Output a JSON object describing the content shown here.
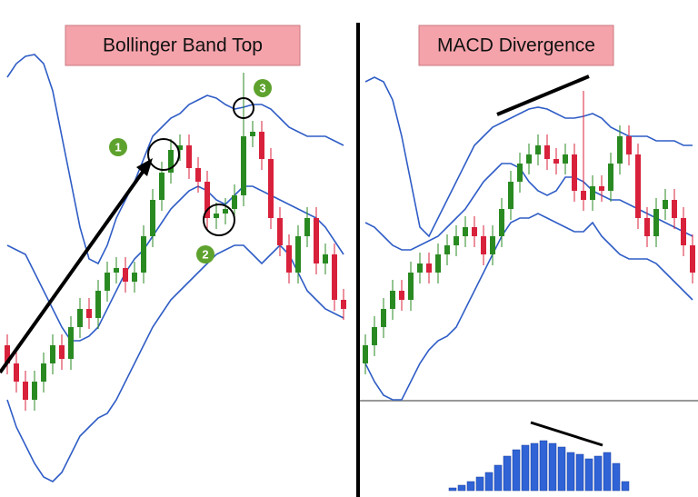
{
  "chart_data": [
    {
      "type": "candlestick",
      "title": "Bollinger Band Top",
      "annotations": [
        "1",
        "2",
        "3"
      ],
      "ylim": [
        0,
        547
      ],
      "up_color": "#2a8a22",
      "down_color": "#d8213b",
      "band_color": "#2f5dc6",
      "open": [
        167,
        147,
        127,
        107,
        127,
        147,
        167,
        152,
        187,
        207,
        197,
        227,
        247,
        252,
        237,
        247,
        287,
        327,
        357,
        382,
        387,
        362,
        347,
        307,
        312,
        317,
        332,
        397,
        402,
        372,
        307,
        277,
        247,
        287,
        307,
        257,
        267,
        217
      ],
      "high": [
        179,
        159,
        139,
        139,
        159,
        179,
        179,
        199,
        219,
        219,
        239,
        259,
        264,
        264,
        259,
        299,
        339,
        369,
        394,
        399,
        399,
        374,
        359,
        324,
        329,
        344,
        467,
        414,
        414,
        384,
        319,
        289,
        299,
        319,
        319,
        279,
        279,
        229
      ],
      "low": [
        135,
        115,
        95,
        95,
        115,
        135,
        140,
        140,
        175,
        185,
        185,
        215,
        235,
        225,
        225,
        235,
        275,
        315,
        345,
        370,
        350,
        335,
        295,
        295,
        300,
        305,
        320,
        385,
        360,
        295,
        265,
        235,
        235,
        275,
        245,
        245,
        205,
        195
      ],
      "close": [
        147,
        127,
        107,
        127,
        147,
        167,
        152,
        187,
        207,
        197,
        227,
        247,
        252,
        237,
        247,
        287,
        327,
        357,
        382,
        387,
        362,
        347,
        307,
        312,
        317,
        332,
        397,
        402,
        372,
        307,
        277,
        247,
        287,
        307,
        257,
        267,
        217,
        207
      ],
      "upper": [
        462,
        477,
        485,
        487,
        477,
        447,
        397,
        347,
        297,
        262,
        257,
        277,
        307,
        327,
        347,
        372,
        397,
        407,
        417,
        422,
        432,
        437,
        442,
        439,
        432,
        427,
        429,
        432,
        432,
        427,
        417,
        407,
        402,
        397,
        397,
        397,
        392,
        387
      ],
      "middle": [
        277,
        272,
        267,
        247,
        227,
        207,
        187,
        172,
        172,
        177,
        187,
        207,
        227,
        247,
        262,
        272,
        287,
        302,
        317,
        327,
        337,
        342,
        337,
        327,
        322,
        332,
        342,
        342,
        337,
        332,
        327,
        322,
        317,
        312,
        307,
        297,
        282,
        267
      ],
      "lower": [
        107,
        77,
        57,
        37,
        22,
        17,
        27,
        47,
        67,
        77,
        87,
        92,
        107,
        127,
        147,
        167,
        187,
        202,
        217,
        227,
        237,
        247,
        257,
        267,
        272,
        277,
        277,
        267,
        257,
        267,
        277,
        267,
        247,
        227,
        217,
        207,
        202,
        197
      ]
    },
    {
      "type": "candlestick",
      "title": "MACD Divergence",
      "ylim": [
        0,
        547
      ],
      "up_color": "#2a8a22",
      "down_color": "#d8213b",
      "band_color": "#2f5dc6",
      "open": [
        147,
        167,
        187,
        207,
        227,
        217,
        247,
        257,
        247,
        267,
        277,
        287,
        297,
        287,
        267,
        287,
        317,
        347,
        367,
        377,
        387,
        372,
        367,
        377,
        337,
        327,
        342,
        337,
        367,
        397,
        377,
        307,
        287,
        317,
        327,
        307,
        277
      ],
      "high": [
        179,
        199,
        219,
        239,
        239,
        259,
        269,
        269,
        279,
        289,
        299,
        309,
        309,
        299,
        299,
        329,
        359,
        379,
        389,
        399,
        399,
        384,
        389,
        389,
        447,
        354,
        354,
        379,
        409,
        409,
        389,
        319,
        329,
        339,
        339,
        319,
        289
      ],
      "low": [
        135,
        155,
        175,
        195,
        205,
        205,
        235,
        235,
        235,
        255,
        265,
        275,
        275,
        255,
        255,
        275,
        305,
        335,
        355,
        365,
        360,
        355,
        355,
        325,
        315,
        315,
        325,
        325,
        355,
        365,
        295,
        275,
        275,
        305,
        295,
        265,
        235
      ],
      "close": [
        167,
        187,
        207,
        227,
        217,
        247,
        257,
        247,
        267,
        277,
        287,
        297,
        287,
        267,
        287,
        317,
        347,
        367,
        377,
        387,
        372,
        367,
        377,
        337,
        327,
        342,
        337,
        367,
        397,
        377,
        307,
        287,
        317,
        327,
        307,
        277,
        247
      ],
      "upper": [
        457,
        462,
        457,
        437,
        397,
        347,
        297,
        287,
        307,
        327,
        347,
        367,
        387,
        397,
        407,
        412,
        417,
        422,
        427,
        429,
        427,
        422,
        417,
        417,
        419,
        422,
        417,
        407,
        402,
        397,
        397,
        397,
        392,
        392,
        392,
        387,
        387
      ],
      "middle": [
        302,
        297,
        287,
        277,
        272,
        272,
        277,
        282,
        287,
        297,
        307,
        317,
        332,
        347,
        357,
        367,
        367,
        362,
        347,
        337,
        332,
        337,
        352,
        352,
        347,
        337,
        332,
        327,
        327,
        322,
        317,
        312,
        307,
        302,
        297,
        292,
        287
      ],
      "lower": [
        147,
        127,
        112,
        107,
        107,
        127,
        147,
        162,
        172,
        177,
        187,
        207,
        227,
        247,
        267,
        287,
        302,
        307,
        307,
        312,
        307,
        302,
        297,
        292,
        292,
        302,
        287,
        277,
        267,
        262,
        262,
        262,
        257,
        247,
        237,
        227,
        217
      ]
    },
    {
      "type": "histogram",
      "ylim": [
        0,
        60
      ],
      "color": "#2f63d6",
      "values": [
        3,
        6,
        10,
        15,
        20,
        28,
        38,
        45,
        50,
        52,
        55,
        52,
        48,
        42,
        40,
        35,
        38,
        42,
        30,
        10
      ]
    }
  ]
}
